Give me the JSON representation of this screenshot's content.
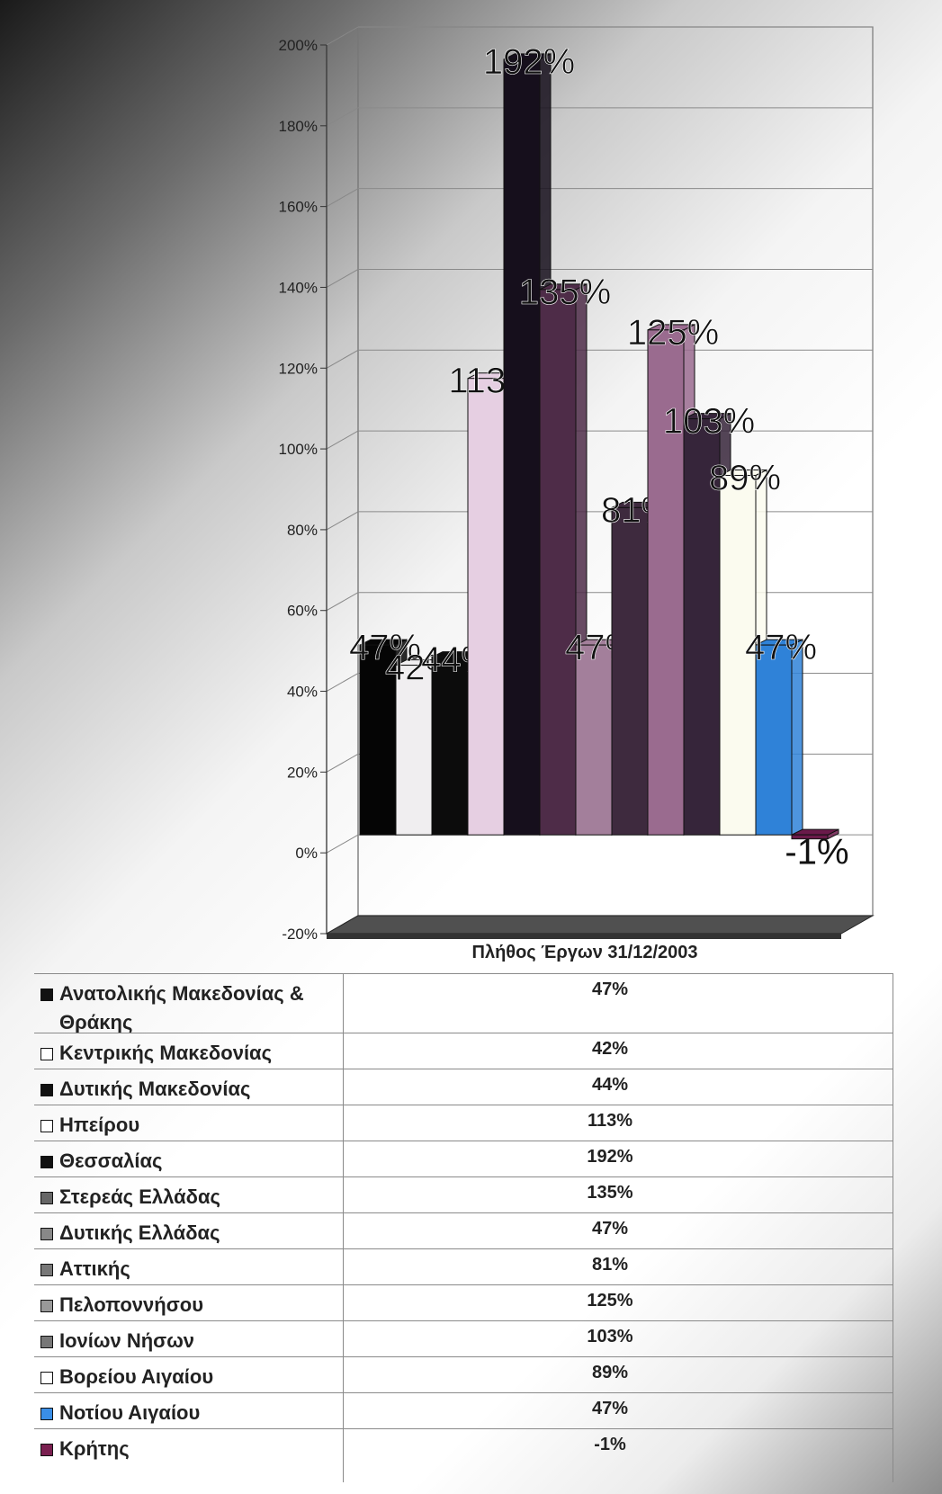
{
  "chart_data": {
    "type": "bar",
    "title": "",
    "table_header": "Πλήθος Έργων 31/12/2003",
    "ylabel": "",
    "ylim": [
      -20,
      200
    ],
    "y_ticks": [
      "200%",
      "180%",
      "160%",
      "140%",
      "120%",
      "100%",
      "80%",
      "60%",
      "40%",
      "20%",
      "0%",
      "-20%"
    ],
    "grid": true,
    "legend": "table-bottom",
    "categories": [
      "Ανατολικής Μακεδονίας & Θράκης",
      "Κεντρικής Μακεδονίας",
      "Δυτικής Μακεδονίας",
      "Ηπείρου",
      "Θεσσαλίας",
      "Στερεάς Ελλάδας",
      "Δυτικής Ελλάδας",
      "Αττικής",
      "Πελοποννήσου",
      "Ιονίων Νήσων",
      "Βορείου Αιγαίου",
      "Νοτίου Αιγαίου",
      "Κρήτης"
    ],
    "values": [
      47,
      42,
      44,
      113,
      192,
      135,
      47,
      81,
      125,
      103,
      89,
      47,
      -1
    ],
    "value_labels": [
      "47%",
      "42%",
      "44%",
      "113%",
      "192%",
      "135%",
      "47%",
      "81%",
      "125%",
      "103%",
      "89%",
      "47%",
      "-1%"
    ],
    "colors": [
      "#050505",
      "#f0eef0",
      "#0c0c0c",
      "#e6cfe2",
      "#160f1c",
      "#4e2c48",
      "#a37f9b",
      "#3e2a3e",
      "#9a6b8f",
      "#36253a",
      "#fbfbef",
      "#2f82d8",
      "#6a1a4a"
    ],
    "swatch_colors": [
      "#111111",
      "#ffffff",
      "#111111",
      "#ffffff",
      "#111111",
      "#666666",
      "#888888",
      "#777777",
      "#999999",
      "#777777",
      "#ffffff",
      "#3a8ee6",
      "#7a2050"
    ]
  }
}
